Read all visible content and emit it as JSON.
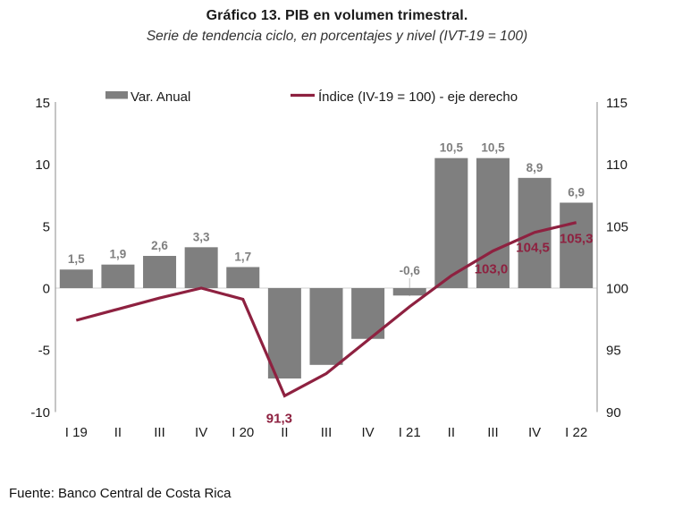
{
  "chart_data": {
    "type": "combo-bar-line",
    "title": "Gráfico 13. PIB en volumen trimestral.",
    "subtitle": "Serie de tendencia ciclo, en porcentajes y nivel (IVT-19 = 100)",
    "source": "Fuente: Banco Central de Costa Rica",
    "categories": [
      "I 19",
      "II",
      "III",
      "IV",
      "I 20",
      "II",
      "III",
      "IV",
      "I 21",
      "II",
      "III",
      "IV",
      "I 22"
    ],
    "series": [
      {
        "name": "Var. Anual",
        "type": "bar",
        "axis": "left",
        "color": "#7f7f7f",
        "label_color": "#7f7f7f",
        "values": [
          1.5,
          1.9,
          2.6,
          3.3,
          1.7,
          -7.3,
          -6.2,
          -4.1,
          -0.6,
          10.5,
          10.5,
          8.9,
          6.9
        ],
        "value_labels": [
          "1,5",
          "1,9",
          "2,6",
          "3,3",
          "1,7",
          null,
          null,
          null,
          "-0,6",
          "10,5",
          "10,5",
          "8,9",
          "6,9"
        ]
      },
      {
        "name": "Índice (IV-19 = 100)  - eje derecho",
        "type": "line",
        "axis": "right",
        "color": "#8E2140",
        "label_color": "#8E2140",
        "values": [
          97.4,
          98.3,
          99.2,
          100.0,
          99.1,
          91.3,
          93.1,
          95.8,
          98.5,
          101.0,
          103.0,
          104.5,
          105.3
        ],
        "value_labels": [
          null,
          null,
          null,
          null,
          null,
          "91,3",
          null,
          null,
          null,
          null,
          "103,0",
          "104,5",
          "105,3"
        ]
      }
    ],
    "left_axis": {
      "ticks": [
        15,
        10,
        5,
        0,
        -5,
        -10
      ],
      "min": -10,
      "max": 15
    },
    "right_axis": {
      "ticks": [
        115,
        110,
        105,
        100,
        95,
        90
      ],
      "min": 90,
      "max": 115
    },
    "legend_position": "top",
    "grid": "zero line only",
    "colors": {
      "bar": "#7f7f7f",
      "line": "#8E2140",
      "axis_line": "#a6a6a6",
      "zero_line": "#d9d9d9",
      "axis_text": "#1a1a1a"
    }
  }
}
